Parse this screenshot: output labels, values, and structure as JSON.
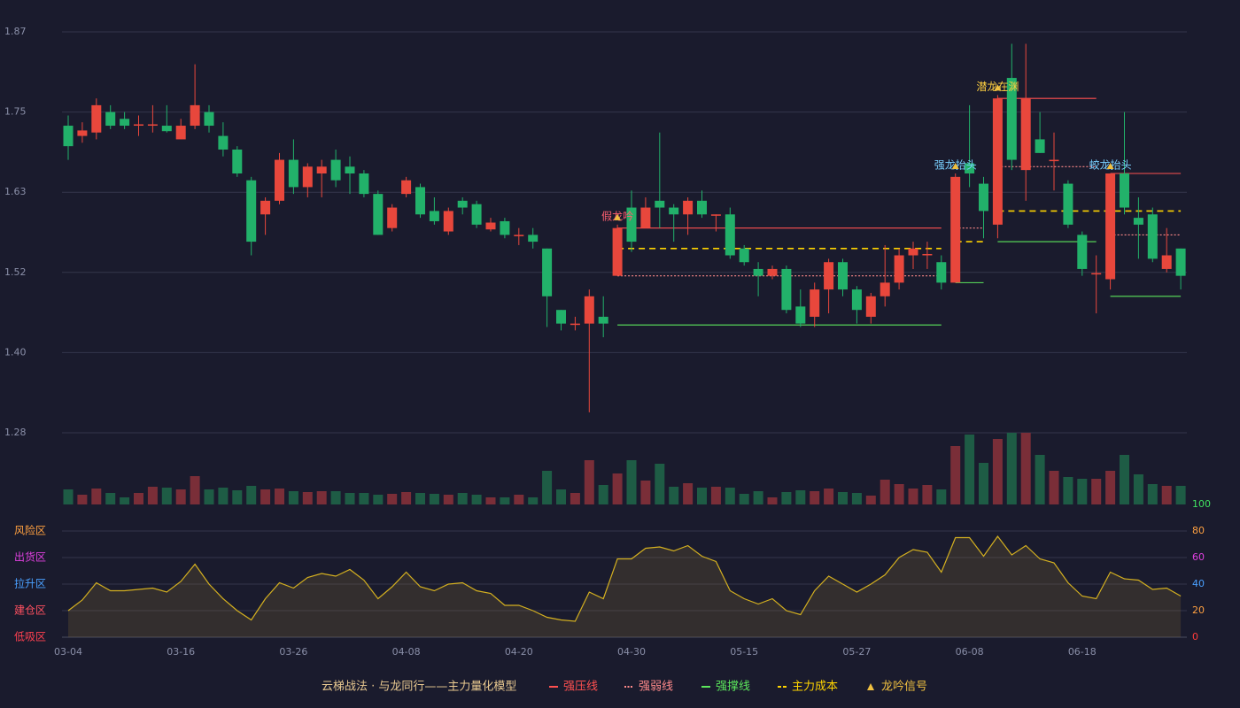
{
  "chart_data": [
    {
      "type": "candlestick",
      "categories": [
        "03-04",
        null,
        null,
        null,
        null,
        null,
        null,
        null,
        "03-16",
        null,
        null,
        null,
        null,
        null,
        null,
        null,
        "03-26",
        null,
        null,
        null,
        null,
        null,
        null,
        null,
        "04-08",
        null,
        null,
        null,
        null,
        null,
        null,
        null,
        "04-20",
        null,
        null,
        null,
        null,
        null,
        null,
        null,
        "04-30",
        null,
        null,
        null,
        null,
        null,
        null,
        null,
        "05-15",
        null,
        null,
        null,
        null,
        null,
        null,
        null,
        "05-27",
        null,
        null,
        null,
        null,
        null,
        null,
        null,
        "06-08",
        null,
        null,
        null,
        null,
        null,
        null,
        null,
        "06-18",
        null,
        null,
        null,
        null,
        null,
        null,
        null
      ],
      "open": [
        1.73,
        1.715,
        1.72,
        1.75,
        1.74,
        1.73,
        1.73,
        1.73,
        1.71,
        1.73,
        1.75,
        1.715,
        1.695,
        1.65,
        1.6,
        1.62,
        1.68,
        1.64,
        1.66,
        1.68,
        1.67,
        1.66,
        1.63,
        1.58,
        1.63,
        1.64,
        1.605,
        1.575,
        1.62,
        1.615,
        1.578,
        1.59,
        1.568,
        1.57,
        1.55,
        1.46,
        1.438,
        1.44,
        1.45,
        1.51,
        1.61,
        1.58,
        1.62,
        1.61,
        1.6,
        1.62,
        1.598,
        1.6,
        1.55,
        1.52,
        1.51,
        1.52,
        1.465,
        1.45,
        1.49,
        1.53,
        1.49,
        1.45,
        1.48,
        1.5,
        1.54,
        1.54,
        1.53,
        1.5,
        1.675,
        1.645,
        1.585,
        1.8,
        1.665,
        1.71,
        1.678,
        1.645,
        1.57,
        1.512,
        1.505,
        1.66,
        1.595,
        1.6,
        1.52,
        1.55
      ],
      "high": [
        1.745,
        1.735,
        1.77,
        1.76,
        1.75,
        1.745,
        1.76,
        1.76,
        1.74,
        1.82,
        1.76,
        1.735,
        1.7,
        1.655,
        1.625,
        1.69,
        1.71,
        1.675,
        1.68,
        1.695,
        1.685,
        1.665,
        1.635,
        1.615,
        1.655,
        1.645,
        1.625,
        1.61,
        1.625,
        1.62,
        1.595,
        1.595,
        1.58,
        1.58,
        1.55,
        1.46,
        1.45,
        1.49,
        1.48,
        1.585,
        1.635,
        1.625,
        1.72,
        1.615,
        1.625,
        1.635,
        1.6,
        1.61,
        1.555,
        1.53,
        1.525,
        1.525,
        1.49,
        1.5,
        1.535,
        1.535,
        1.495,
        1.485,
        1.555,
        1.55,
        1.56,
        1.56,
        1.54,
        1.66,
        1.76,
        1.655,
        1.775,
        1.85,
        1.85,
        1.75,
        1.72,
        1.65,
        1.575,
        1.54,
        1.66,
        1.75,
        1.625,
        1.61,
        1.58,
        1.55
      ],
      "low": [
        1.68,
        1.705,
        1.71,
        1.725,
        1.725,
        1.715,
        1.72,
        1.72,
        1.71,
        1.725,
        1.72,
        1.685,
        1.655,
        1.54,
        1.57,
        1.615,
        1.63,
        1.625,
        1.625,
        1.64,
        1.63,
        1.625,
        1.57,
        1.575,
        1.625,
        1.595,
        1.585,
        1.57,
        1.6,
        1.58,
        1.575,
        1.565,
        1.555,
        1.55,
        1.435,
        1.43,
        1.43,
        1.31,
        1.42,
        1.51,
        1.545,
        1.58,
        1.58,
        1.56,
        1.57,
        1.595,
        1.575,
        1.535,
        1.525,
        1.48,
        1.505,
        1.455,
        1.435,
        1.435,
        1.455,
        1.48,
        1.44,
        1.44,
        1.465,
        1.49,
        1.52,
        1.52,
        1.49,
        1.5,
        1.64,
        1.565,
        1.565,
        1.665,
        1.62,
        1.69,
        1.635,
        1.58,
        1.51,
        1.455,
        1.49,
        1.6,
        1.535,
        1.53,
        1.515,
        1.49
      ],
      "close": [
        1.7,
        1.723,
        1.76,
        1.73,
        1.73,
        1.732,
        1.732,
        1.722,
        1.73,
        1.76,
        1.73,
        1.695,
        1.66,
        1.56,
        1.62,
        1.68,
        1.64,
        1.67,
        1.67,
        1.65,
        1.66,
        1.63,
        1.57,
        1.61,
        1.65,
        1.6,
        1.59,
        1.605,
        1.61,
        1.585,
        1.588,
        1.57,
        1.57,
        1.56,
        1.48,
        1.44,
        1.44,
        1.48,
        1.44,
        1.58,
        1.56,
        1.61,
        1.61,
        1.6,
        1.62,
        1.6,
        1.6,
        1.54,
        1.53,
        1.51,
        1.52,
        1.46,
        1.44,
        1.49,
        1.53,
        1.49,
        1.46,
        1.48,
        1.5,
        1.54,
        1.55,
        1.542,
        1.5,
        1.655,
        1.66,
        1.605,
        1.77,
        1.68,
        1.77,
        1.69,
        1.68,
        1.585,
        1.52,
        1.514,
        1.66,
        1.61,
        1.585,
        1.535,
        1.54,
        1.51
      ],
      "up_color": "#e8473c",
      "down_color": "#22b16a",
      "ylim": [
        1.28,
        1.8675
      ],
      "yticks": [
        1.28,
        {
          "value": 1.3975,
          "label": "1.40"
        },
        {
          "value": 1.515,
          "label": "1.52"
        },
        {
          "value": 1.6325,
          "label": "1.63"
        },
        1.75,
        {
          "value": 1.8675,
          "label": "1.87"
        }
      ],
      "grid": true,
      "series": [
        {
          "name": "强压线",
          "color": "#ff5050",
          "line_style": "solid",
          "values": [
            null,
            null,
            null,
            null,
            null,
            null,
            null,
            null,
            null,
            null,
            null,
            null,
            null,
            null,
            null,
            null,
            null,
            null,
            null,
            null,
            null,
            null,
            null,
            null,
            null,
            null,
            null,
            null,
            null,
            null,
            null,
            null,
            null,
            null,
            null,
            null,
            null,
            null,
            null,
            1.58,
            1.58,
            1.58,
            1.58,
            1.58,
            1.58,
            1.58,
            1.58,
            1.58,
            1.58,
            1.58,
            1.58,
            1.58,
            1.58,
            1.58,
            1.58,
            1.58,
            1.58,
            1.58,
            1.58,
            1.58,
            1.58,
            1.58,
            1.58,
            null,
            null,
            null,
            1.77,
            1.77,
            1.77,
            1.77,
            1.77,
            1.77,
            1.77,
            1.77,
            1.66,
            1.66,
            1.66,
            1.66,
            1.66,
            1.66
          ]
        },
        {
          "name": "强弱线",
          "color": "#ff8a8a",
          "line_style": "dotted",
          "values": [
            null,
            null,
            null,
            null,
            null,
            null,
            null,
            null,
            null,
            null,
            null,
            null,
            null,
            null,
            null,
            null,
            null,
            null,
            null,
            null,
            null,
            null,
            null,
            null,
            null,
            null,
            null,
            null,
            null,
            null,
            null,
            null,
            null,
            null,
            null,
            null,
            null,
            null,
            null,
            1.51,
            1.51,
            1.51,
            1.51,
            1.51,
            1.51,
            1.51,
            1.51,
            1.51,
            1.51,
            1.51,
            1.51,
            1.51,
            1.51,
            1.51,
            1.51,
            1.51,
            1.51,
            1.51,
            1.51,
            1.51,
            1.51,
            1.51,
            1.51,
            1.58,
            1.58,
            1.58,
            1.67,
            1.67,
            1.67,
            1.67,
            1.67,
            1.67,
            1.67,
            1.67,
            1.57,
            1.57,
            1.57,
            1.57,
            1.57,
            1.57
          ]
        },
        {
          "name": "强撑线",
          "color": "#5ce65c",
          "line_style": "solid",
          "values": [
            null,
            null,
            null,
            null,
            null,
            null,
            null,
            null,
            null,
            null,
            null,
            null,
            null,
            null,
            null,
            null,
            null,
            null,
            null,
            null,
            null,
            null,
            null,
            null,
            null,
            null,
            null,
            null,
            null,
            null,
            null,
            null,
            null,
            null,
            null,
            null,
            null,
            null,
            null,
            1.438,
            1.438,
            1.438,
            1.438,
            1.438,
            1.438,
            1.438,
            1.438,
            1.438,
            1.438,
            1.438,
            1.438,
            1.438,
            1.438,
            1.438,
            1.438,
            1.438,
            1.438,
            1.438,
            1.438,
            1.438,
            1.438,
            1.438,
            1.438,
            1.5,
            1.5,
            1.5,
            1.56,
            1.56,
            1.56,
            1.56,
            1.56,
            1.56,
            1.56,
            1.56,
            1.48,
            1.48,
            1.48,
            1.48,
            1.48,
            1.48
          ]
        },
        {
          "name": "主力成本",
          "color": "#ffd400",
          "line_style": "dashed",
          "values": [
            null,
            null,
            null,
            null,
            null,
            null,
            null,
            null,
            null,
            null,
            null,
            null,
            null,
            null,
            null,
            null,
            null,
            null,
            null,
            null,
            null,
            null,
            null,
            null,
            null,
            null,
            null,
            null,
            null,
            null,
            null,
            null,
            null,
            null,
            null,
            null,
            null,
            null,
            null,
            1.55,
            1.55,
            1.55,
            1.55,
            1.55,
            1.55,
            1.55,
            1.55,
            1.55,
            1.55,
            1.55,
            1.55,
            1.55,
            1.55,
            1.55,
            1.55,
            1.55,
            1.55,
            1.55,
            1.55,
            1.55,
            1.55,
            1.55,
            1.55,
            1.56,
            1.56,
            1.56,
            1.605,
            1.605,
            1.605,
            1.605,
            1.605,
            1.605,
            1.605,
            1.605,
            1.605,
            1.605,
            1.605,
            1.605,
            1.605,
            1.605
          ]
        }
      ],
      "signals_name": "龙吟信号",
      "signal_color": "#f0c040",
      "signals": [
        {
          "index": 39,
          "label": "假龙吟",
          "color": "#ff6070"
        },
        {
          "index": 63,
          "label": "强龙抬头",
          "color": "#7ad0ff"
        },
        {
          "index": 66,
          "label": "潜龙在渊",
          "color": "#ffd040"
        },
        {
          "index": 74,
          "label": "蛟龙抬头",
          "color": "#7ad0ff"
        }
      ]
    },
    {
      "type": "bar",
      "values": [
        17,
        11,
        18,
        13,
        8,
        13,
        20,
        19,
        17,
        32,
        17,
        19,
        16,
        21,
        17,
        18,
        15,
        14,
        15,
        15,
        13,
        13,
        11,
        12,
        14,
        13,
        12,
        11,
        13,
        11,
        8,
        8,
        11,
        8,
        38,
        17,
        13,
        50,
        22,
        35,
        50,
        27,
        46,
        20,
        24,
        19,
        20,
        19,
        12,
        15,
        8,
        14,
        16,
        15,
        18,
        14,
        13,
        10,
        28,
        23,
        18,
        22,
        17,
        66,
        79,
        47,
        74,
        81,
        81,
        56,
        38,
        31,
        29,
        29,
        38,
        56,
        34,
        23,
        21,
        21
      ],
      "up_color": "#7a2e38",
      "down_color": "#1e5c45"
    },
    {
      "type": "line",
      "values": [
        20,
        28,
        41,
        35,
        35,
        36,
        37,
        34,
        42,
        55,
        40,
        29,
        20,
        13,
        29,
        41,
        37,
        45,
        48,
        46,
        51,
        43,
        29,
        38,
        49,
        38,
        35,
        40,
        41,
        35,
        33,
        24,
        24,
        20,
        15,
        13,
        12,
        34,
        29,
        59,
        59,
        67,
        68,
        65,
        69,
        61,
        57,
        35,
        29,
        25,
        29,
        20,
        17,
        35,
        46,
        40,
        34,
        40,
        47,
        60,
        66,
        64,
        49,
        75,
        75,
        61,
        76,
        62,
        69,
        59,
        56,
        41,
        31,
        29,
        49,
        44,
        43,
        36,
        37,
        31
      ],
      "color": "#d4b020",
      "ylim": [
        0,
        100
      ],
      "yticks": [
        0,
        20,
        40,
        60,
        80,
        100
      ],
      "ytick_colors": [
        "#ff3b3b",
        "#ffa040",
        "#4aa0ff",
        "#e040e0",
        "#ffa040",
        "#40e060"
      ],
      "zones": [
        {
          "label": "风险区",
          "value": 80,
          "color": "#ffa040"
        },
        {
          "label": "出货区",
          "value": 60,
          "color": "#e040e0"
        },
        {
          "label": "拉升区",
          "value": 40,
          "color": "#4aa0ff"
        },
        {
          "label": "建仓区",
          "value": 20,
          "color": "#ff5060"
        },
        {
          "label": "低吸区",
          "value": 0,
          "color": "#ff4050"
        }
      ],
      "grid": true
    }
  ],
  "footer": {
    "title": "云梯战法 · 与龙同行——主力量化模型"
  }
}
